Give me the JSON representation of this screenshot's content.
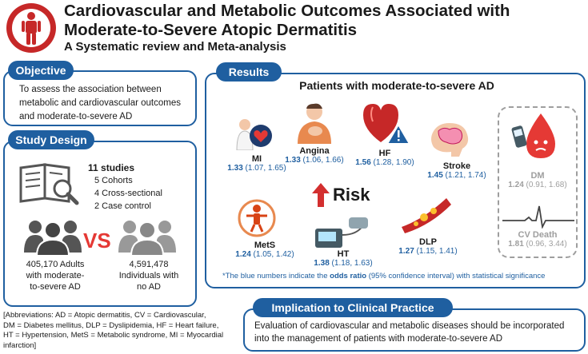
{
  "header": {
    "title_line1": "Cardiovascular and Metabolic Outcomes Associated with",
    "title_line2": "Moderate-to-Severe Atopic Dermatitis",
    "subtitle": "A Systematic review and Meta-analysis"
  },
  "objective": {
    "label": "Objective",
    "text_line1": "To assess the association between",
    "text_line2": "metabolic and cardiovascular outcomes",
    "text_line3": "and moderate-to-severe AD"
  },
  "study_design": {
    "label": "Study Design",
    "studies": "11 studies",
    "cohorts": "5 Cohorts",
    "cross_sectional": "4 Cross-sectional",
    "case_control": "2 Case control",
    "vs": "VS",
    "group1_line1": "405,170 Adults",
    "group1_line2": "with moderate-",
    "group1_line3": "to-severe AD",
    "group2_line1": "4,591,478",
    "group2_line2": "Individuals with",
    "group2_line3": "no AD"
  },
  "results": {
    "label": "Results",
    "title": "Patients with moderate-to-severe AD",
    "risk_label": "Risk",
    "outcomes": {
      "mi": {
        "label": "MI",
        "or": "1.33",
        "ci": "(1.07, 1.65)"
      },
      "angina": {
        "label": "Angina",
        "or": "1.33",
        "ci": "(1.06, 1.66)"
      },
      "hf": {
        "label": "HF",
        "or": "1.56",
        "ci": "(1.28, 1.90)"
      },
      "stroke": {
        "label": "Stroke",
        "or": "1.45",
        "ci": "(1.21, 1.74)"
      },
      "dm": {
        "label": "DM",
        "or": "1.24",
        "ci": "(0.91, 1.68)"
      },
      "mets": {
        "label": "MetS",
        "or": "1.24",
        "ci": "(1.05, 1.42)"
      },
      "ht": {
        "label": "HT",
        "or": "1.38",
        "ci": "(1.18, 1.63)"
      },
      "dlp": {
        "label": "DLP",
        "or": "1.27",
        "ci": "(1.15, 1.41)"
      },
      "cvdeath": {
        "label": "CV Death",
        "or": "1.81",
        "ci": "(0.96, 3.44)"
      }
    },
    "note_pre": "*The blue numbers indicate the ",
    "note_bold": "odds ratio",
    "note_post": " (95% confidence interval) with statistical significance"
  },
  "abbreviations": {
    "line1": "[Abbreviations: AD = Atopic dermatitis, CV = Cardiovascular,",
    "line2": "DM = Diabetes mellitus, DLP = Dyslipidemia, HF = Heart failure,",
    "line3": "HT = Hypertension, MetS = Metabolic syndrome, MI = Myocardial",
    "line4": "infarction]"
  },
  "implication": {
    "label": "Implication to Clinical Practice",
    "text_line1": "Evaluation of cardiovascular and metabolic diseases should be incorporated",
    "text_line2": "into the management of patients with moderate-to-severe AD"
  },
  "colors": {
    "accent": "#1f5fa0",
    "red": "#c62828",
    "vs_red": "#e53935",
    "gray": "#9e9e9e"
  }
}
